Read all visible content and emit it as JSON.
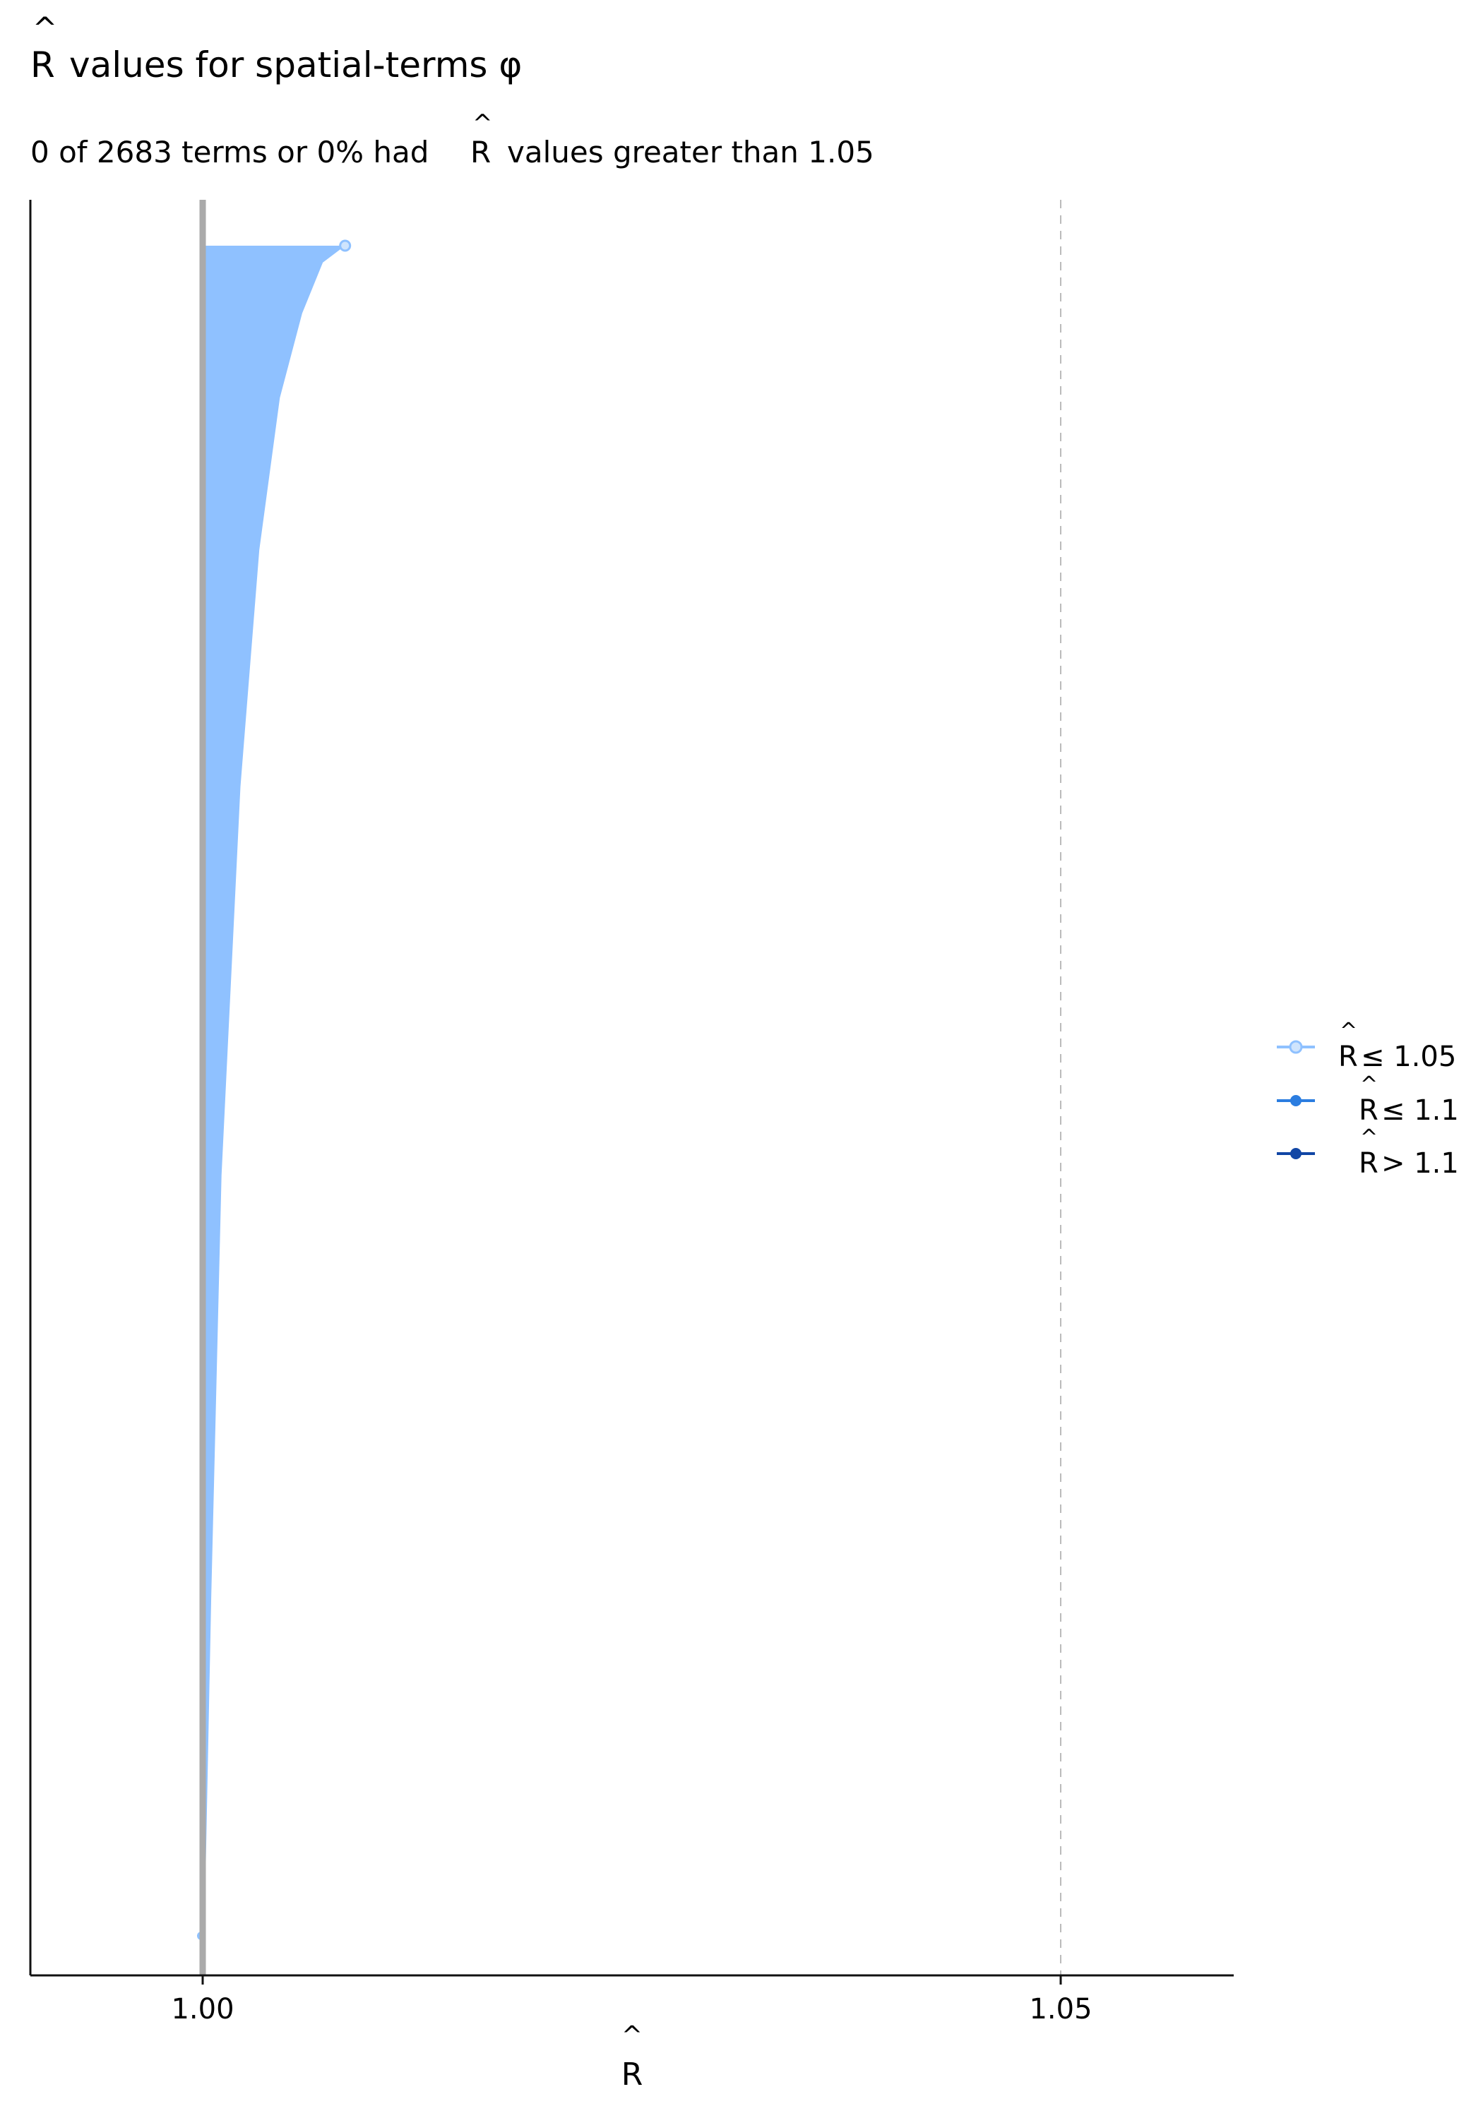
{
  "chart_data": {
    "type": "scatter",
    "title": "values for spatial-terms φ",
    "title_hat": "R",
    "subtitle_pre": "0 of 2683 terms or 0% had",
    "subtitle_hat": "R",
    "subtitle_post": "values greater than 1.05",
    "xlabel": "R",
    "xlim": [
      0.99,
      1.06
    ],
    "x_ticks": [
      "1.00",
      "1.05"
    ],
    "n_terms": 2683,
    "reference_lines": {
      "solid": 1.0,
      "dashed": 1.05
    },
    "rhat_max": 1.0083,
    "profile": [
      [
        0,
        1.0083
      ],
      [
        0.01,
        1.007
      ],
      [
        0.04,
        1.0058
      ],
      [
        0.09,
        1.0045
      ],
      [
        0.18,
        1.0033
      ],
      [
        0.32,
        1.0022
      ],
      [
        0.55,
        1.0011
      ],
      [
        0.8,
        1.0005
      ],
      [
        1.0,
        1.0001
      ]
    ],
    "grid": false,
    "legend_position": "right",
    "legend": [
      {
        "hat": "R",
        "label": "≤ 1.05",
        "color": "#8fc1ff"
      },
      {
        "hat": "R",
        "label": "≤ 1.1",
        "color": "#2b7de0"
      },
      {
        "hat": "R",
        "label": "> 1.1",
        "color": "#1146a5"
      }
    ],
    "colors": {
      "fill": "#8fc1ff",
      "point": "#a8cffb",
      "refline": "#aaaaaa",
      "dashed": "#bbbbbb"
    }
  }
}
